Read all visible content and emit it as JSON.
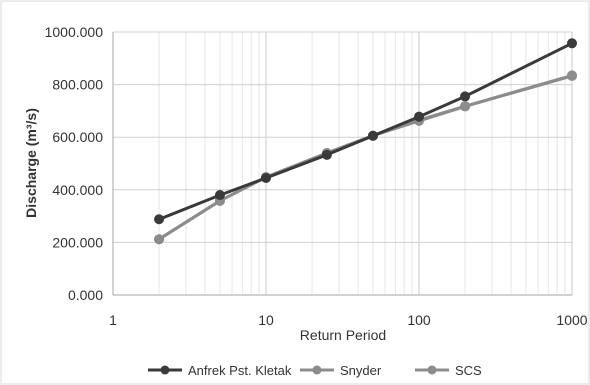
{
  "chart_data": {
    "type": "line",
    "x_scale": "log",
    "xlabel": "Return Period",
    "ylabel": "Discharge (m³/s)",
    "xlim": [
      1,
      1000
    ],
    "ylim": [
      0,
      1000
    ],
    "x_ticks": [
      1,
      10,
      100,
      1000
    ],
    "x_tick_labels": [
      "1",
      "10",
      "100",
      "1000"
    ],
    "y_ticks": [
      0,
      200,
      400,
      600,
      800,
      1000
    ],
    "y_tick_labels": [
      "0.000",
      "200.000",
      "400.000",
      "600.000",
      "800.000",
      "1000.000"
    ],
    "grid": true,
    "legend_position": "bottom",
    "x": [
      2,
      5,
      10,
      25,
      50,
      100,
      200,
      1000
    ],
    "series": [
      {
        "name": "Anfrek Pst. Kletak",
        "color": "#3a3a3a",
        "values": [
          288,
          380,
          445,
          533,
          605,
          678,
          755,
          957
        ]
      },
      {
        "name": "Snyder",
        "color": "#8c8c8c",
        "values": [
          212,
          358,
          448,
          540,
          606,
          662,
          717,
          833
        ]
      },
      {
        "name": "SCS",
        "color": "#8c8c8c",
        "values": [
          212,
          358,
          448,
          540,
          606,
          665,
          718,
          835
        ]
      }
    ]
  }
}
